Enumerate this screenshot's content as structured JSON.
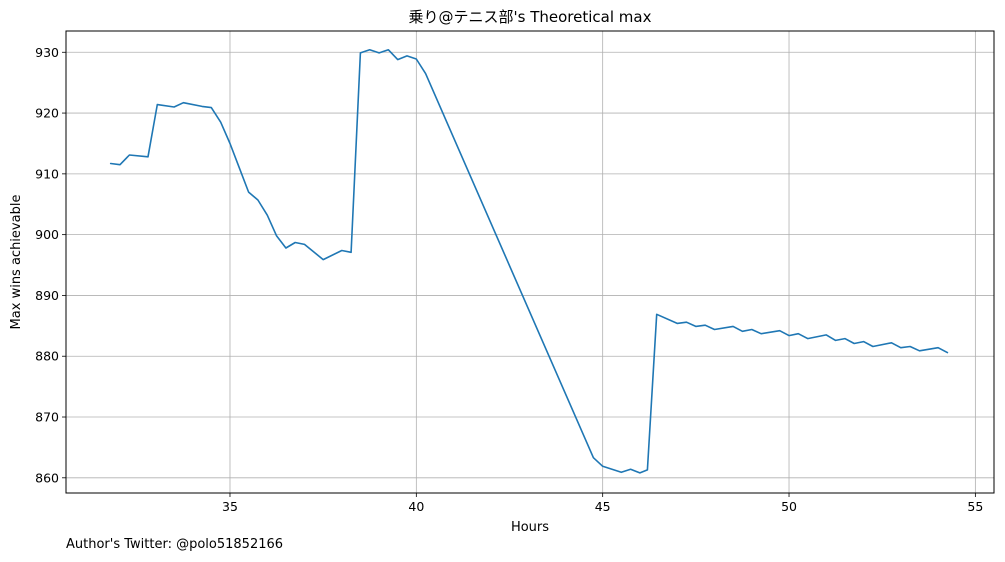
{
  "chart_data": {
    "type": "line",
    "title": "乗り@テニス部's Theoretical max",
    "xlabel": "Hours",
    "ylabel": "Max wins achievable",
    "xlim": [
      30.6,
      55.5
    ],
    "ylim": [
      857.5,
      933.5
    ],
    "xticks": [
      35,
      40,
      45,
      50,
      55
    ],
    "yticks": [
      860,
      870,
      880,
      890,
      900,
      910,
      920,
      930
    ],
    "grid": true,
    "series": [
      {
        "color": "#1f77b4",
        "x": [
          31.8,
          32.05,
          32.3,
          32.8,
          33.05,
          33.5,
          33.75,
          34.25,
          34.5,
          34.75,
          35.0,
          35.25,
          35.5,
          35.75,
          36.0,
          36.25,
          36.5,
          36.75,
          37.0,
          37.5,
          38.0,
          38.25,
          38.5,
          38.75,
          39.0,
          39.25,
          39.5,
          39.75,
          40.0,
          40.25,
          44.75,
          45.0,
          45.5,
          45.75,
          46.0,
          46.2,
          46.45,
          47.0,
          47.25,
          47.5,
          47.75,
          48.0,
          48.5,
          48.75,
          49.0,
          49.25,
          49.75,
          50.0,
          50.25,
          50.5,
          51.0,
          51.25,
          51.5,
          51.75,
          52.0,
          52.25,
          52.75,
          53.0,
          53.25,
          53.5,
          54.0,
          54.25
        ],
        "values": [
          911.7,
          911.5,
          913.1,
          912.8,
          921.4,
          921.0,
          921.7,
          921.1,
          920.9,
          918.5,
          915.0,
          911.0,
          907.0,
          905.7,
          903.2,
          899.8,
          897.8,
          898.7,
          898.4,
          895.9,
          897.4,
          897.1,
          929.9,
          930.4,
          929.9,
          930.4,
          928.8,
          929.4,
          928.9,
          926.5,
          863.3,
          861.9,
          860.9,
          861.4,
          860.8,
          861.3,
          886.9,
          885.4,
          885.6,
          884.9,
          885.1,
          884.4,
          884.9,
          884.1,
          884.4,
          883.7,
          884.2,
          883.4,
          883.7,
          882.9,
          883.5,
          882.6,
          882.9,
          882.1,
          882.4,
          881.6,
          882.2,
          881.4,
          881.6,
          880.9,
          881.4,
          880.6
        ]
      }
    ]
  },
  "footnote": "Author's Twitter: @polo51852166"
}
